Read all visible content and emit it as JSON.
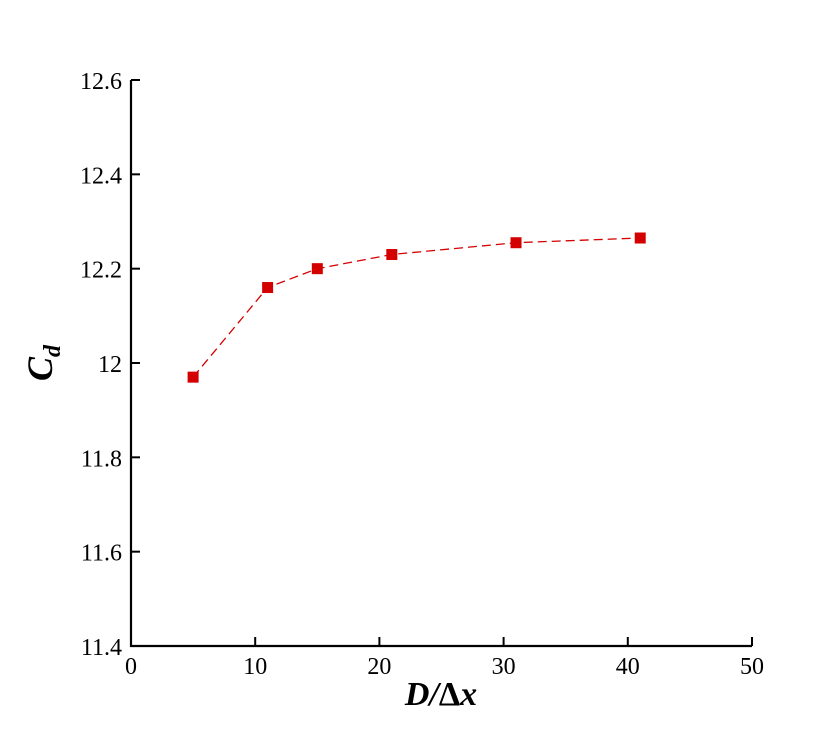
{
  "chart_data": {
    "type": "line",
    "title": "",
    "xlabel": "D/Δx",
    "xlabel_parts": {
      "main": "D/",
      "delta": "Δ",
      "var": "x"
    },
    "ylabel": "Cd",
    "ylabel_parts": {
      "main": "C",
      "sub": "d"
    },
    "xlim": [
      0,
      50
    ],
    "ylim": [
      11.4,
      12.6
    ],
    "xticks": [
      0,
      10,
      20,
      30,
      40,
      50
    ],
    "xtick_labels": [
      "0",
      "10",
      "20",
      "30",
      "40",
      "50"
    ],
    "yticks": [
      11.4,
      11.6,
      11.8,
      12.0,
      12.2,
      12.4,
      12.6
    ],
    "ytick_labels": [
      "11.4",
      "11.6",
      "11.8",
      "12",
      "12.2",
      "12.4",
      "12.6"
    ],
    "grid": false,
    "legend": "none",
    "series": [
      {
        "x": [
          5,
          11,
          15,
          21,
          31,
          41
        ],
        "y": [
          11.97,
          12.16,
          12.2,
          12.23,
          12.255,
          12.265
        ],
        "color": "#d40000",
        "line_style": "dashed",
        "marker": "square"
      }
    ]
  }
}
